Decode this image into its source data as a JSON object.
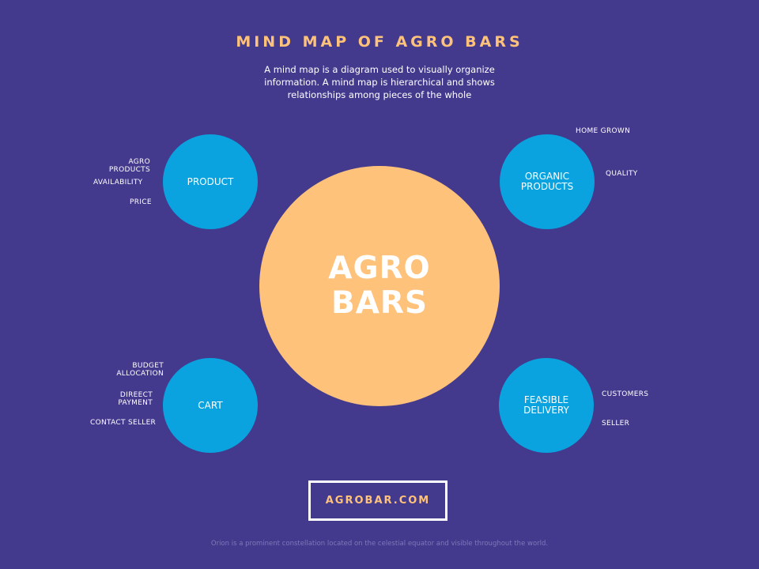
{
  "header": {
    "title": "MIND MAP OF AGRO BARS",
    "subtitle": "A mind map is a diagram used to visually organize information. A mind map is hierarchical and shows relationships among pieces of the whole"
  },
  "center": {
    "label": "AGRO BARS"
  },
  "nodes": {
    "product": {
      "label": "PRODUCT",
      "items": [
        "AGRO PRODUCTS",
        "AVAILABILITY",
        "PRICE"
      ]
    },
    "organic": {
      "label": "ORGANIC PRODUCTS",
      "items": [
        "HOME GROWN",
        "QUALITY"
      ]
    },
    "cart": {
      "label": "CART",
      "items": [
        "BUDGET ALLOCATION",
        "DIREECT PAYMENT",
        "CONTACT SELLER"
      ]
    },
    "delivery": {
      "label": "FEASIBLE DELIVERY",
      "items": [
        "CUSTOMERS",
        "SELLER"
      ]
    }
  },
  "cta": {
    "label": "AGROBAR.COM"
  },
  "footer": {
    "text": "Orion is a prominent constellation located on the celestial equator and visible throughout the world."
  },
  "colors": {
    "background": "#433a8e",
    "center": "#ffc27a",
    "node": "#0aa3df",
    "accent_text": "#ffc27a"
  }
}
